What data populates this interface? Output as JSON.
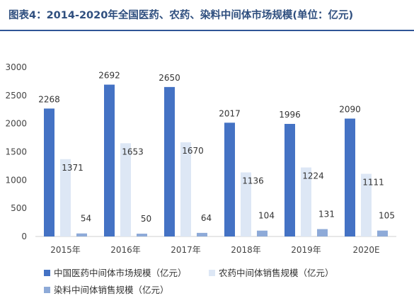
{
  "chart_data": {
    "type": "bar",
    "title": "图表4：2014-2020年全国医药、农药、染料中间体市场规模(单位：亿元)",
    "categories": [
      "2015年",
      "2016年",
      "2017年",
      "2018年",
      "2019年",
      "2020E"
    ],
    "series": [
      {
        "name": "中国医药中间体市场规模（亿元）",
        "color": "#4472c4",
        "values": [
          2268,
          2692,
          2650,
          2017,
          1996,
          2090
        ]
      },
      {
        "name": "农药中间体销售规模（亿元）",
        "color": "#dde7f5",
        "values": [
          1371,
          1653,
          1670,
          1136,
          1224,
          1111
        ]
      },
      {
        "name": "染料中间体销售规模（亿元）",
        "color": "#8eaad8",
        "values": [
          54,
          50,
          64,
          104,
          131,
          105
        ]
      }
    ],
    "ylim": [
      0,
      3000
    ],
    "yticks": [
      0,
      500,
      1000,
      1500,
      2000,
      2500,
      3000
    ],
    "grid": false,
    "legend_position": "bottom"
  }
}
